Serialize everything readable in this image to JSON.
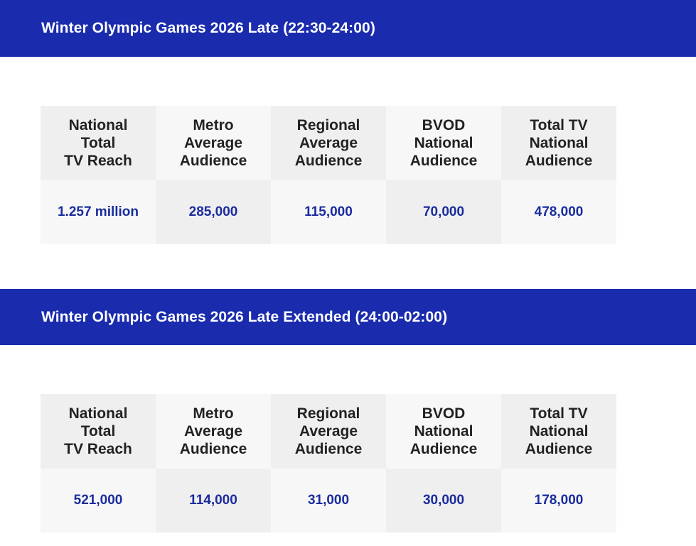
{
  "sections": [
    {
      "title": "Winter Olympic Games 2026 Late (22:30-24:00)",
      "headers": [
        "National\nTotal\nTV Reach",
        "Metro\nAverage\nAudience",
        "Regional\nAverage\nAudience",
        "BVOD\nNational\nAudience",
        "Total TV\nNational\nAudience"
      ],
      "values": [
        "1.257 million",
        "285,000",
        "115,000",
        "70,000",
        "478,000"
      ]
    },
    {
      "title": "Winter Olympic Games 2026 Late Extended (24:00-02:00)",
      "headers": [
        "National\nTotal\nTV Reach",
        "Metro\nAverage\nAudience",
        "Regional\nAverage\nAudience",
        "BVOD\nNational\nAudience",
        "Total TV\nNational\nAudience"
      ],
      "values": [
        "521,000",
        "114,000",
        "31,000",
        "30,000",
        "178,000"
      ]
    }
  ],
  "colors": {
    "banner_bg": "#1a2cad",
    "value_text": "#1a2c9e",
    "header_text": "#222222",
    "cell_dark": "#efefef",
    "cell_light": "#f7f7f7"
  }
}
